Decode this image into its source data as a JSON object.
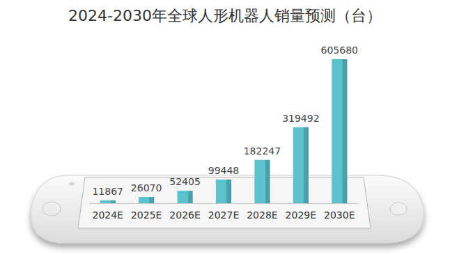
{
  "chart_data": {
    "type": "bar",
    "title": "2024-2030年全球人形机器人销量预测（台）",
    "categories": [
      "2024E",
      "2025E",
      "2026E",
      "2027E",
      "2028E",
      "2029E",
      "2030E"
    ],
    "values": [
      11867,
      26070,
      52405,
      99448,
      182247,
      319492,
      605680
    ],
    "color": "#5bc3cb",
    "ylim": [
      0,
      605680
    ],
    "data_labels": true,
    "tick_labels": "x",
    "grid": false
  }
}
